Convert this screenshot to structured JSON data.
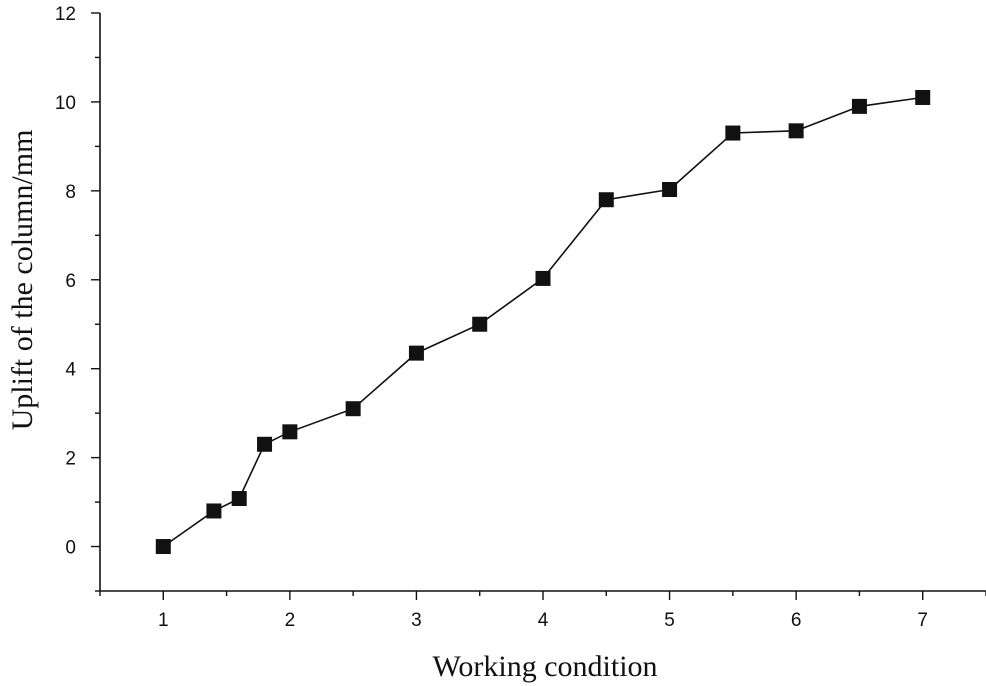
{
  "chart_data": {
    "type": "line",
    "title": "",
    "xlabel": "Working condition",
    "ylabel": "Uplift of the column/mm",
    "xlim": [
      0.5,
      7.5
    ],
    "ylim": [
      -1,
      12
    ],
    "x_ticks": [
      1,
      2,
      3,
      4,
      5,
      6,
      7
    ],
    "y_ticks": [
      0,
      2,
      4,
      6,
      8,
      10,
      12
    ],
    "grid": false,
    "legend": "none",
    "marker": "square",
    "color": "#111111",
    "series": [
      {
        "x": [
          1,
          1.4,
          1.6,
          1.8,
          2,
          2.5,
          3,
          3.5,
          4,
          4.5,
          5,
          5.5,
          6,
          6.5,
          7
        ],
        "y": [
          0,
          0.8,
          1.08,
          2.3,
          2.58,
          3.1,
          4.35,
          5.0,
          6.03,
          7.8,
          8.03,
          9.3,
          9.35,
          9.9,
          10.1
        ]
      }
    ]
  }
}
